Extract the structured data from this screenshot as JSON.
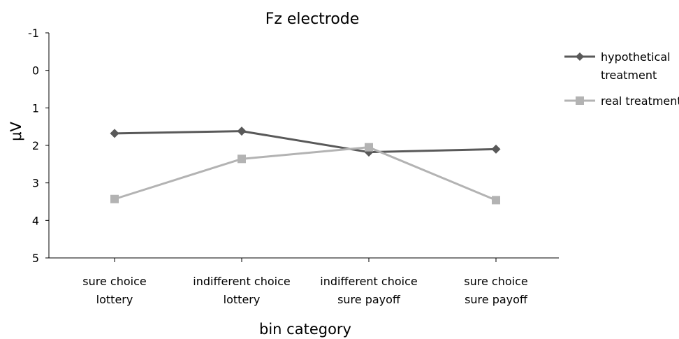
{
  "chart_data": {
    "type": "line",
    "title": "Fz electrode",
    "xlabel": "bin category",
    "ylabel": "μV",
    "y_inverted": true,
    "ylim": [
      -1,
      5
    ],
    "yticks": [
      "-1",
      "0",
      "1",
      "2",
      "3",
      "4",
      "5"
    ],
    "grid": false,
    "legend_position": "right",
    "categories": [
      [
        "sure choice",
        "lottery"
      ],
      [
        "indifferent choice",
        "lottery"
      ],
      [
        "indifferent choice",
        "sure payoff"
      ],
      [
        "sure choice",
        "sure payoff"
      ]
    ],
    "series": [
      {
        "name": [
          "hypothetical",
          "treatment"
        ],
        "values": [
          1.68,
          1.62,
          2.18,
          2.1
        ],
        "color": "#595959",
        "marker": "diamond"
      },
      {
        "name": [
          "real treatment"
        ],
        "values": [
          3.43,
          2.36,
          2.05,
          3.46
        ],
        "color": "#b3b3b3",
        "marker": "square"
      }
    ]
  }
}
